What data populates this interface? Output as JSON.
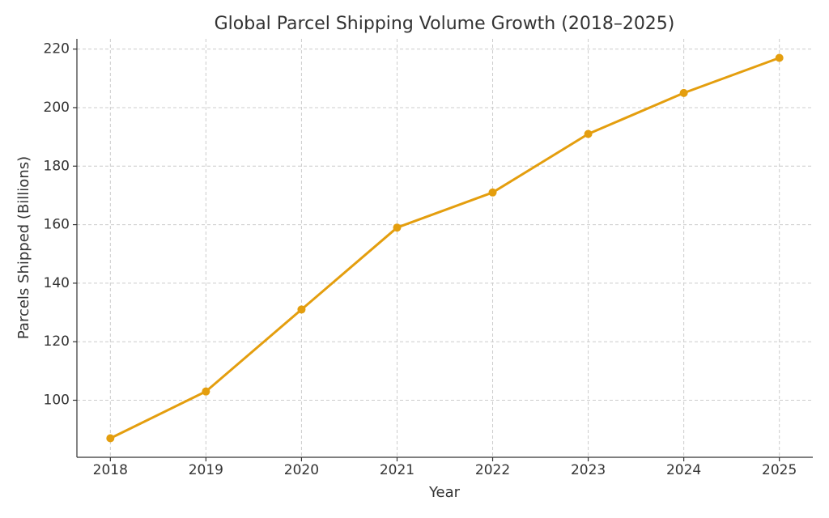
{
  "chart_data": {
    "type": "line",
    "title": "Global Parcel Shipping Volume Growth (2018–2025)",
    "x_label": "Year",
    "y_label": "Parcels Shipped (Billions)",
    "x": [
      2018,
      2019,
      2020,
      2021,
      2022,
      2023,
      2024,
      2025
    ],
    "series": [
      {
        "name": "Parcels Shipped",
        "color": "#e49e0e",
        "values": [
          87,
          103,
          131,
          159,
          171,
          191,
          205,
          217
        ]
      }
    ],
    "xlim": [
      2017.65,
      2025.35
    ],
    "xticks": [
      2018,
      2019,
      2020,
      2021,
      2022,
      2023,
      2024,
      2025
    ],
    "ylim": [
      80.5,
      223.5
    ],
    "yticks": [
      100,
      120,
      140,
      160,
      180,
      200,
      220
    ],
    "grid": true
  }
}
